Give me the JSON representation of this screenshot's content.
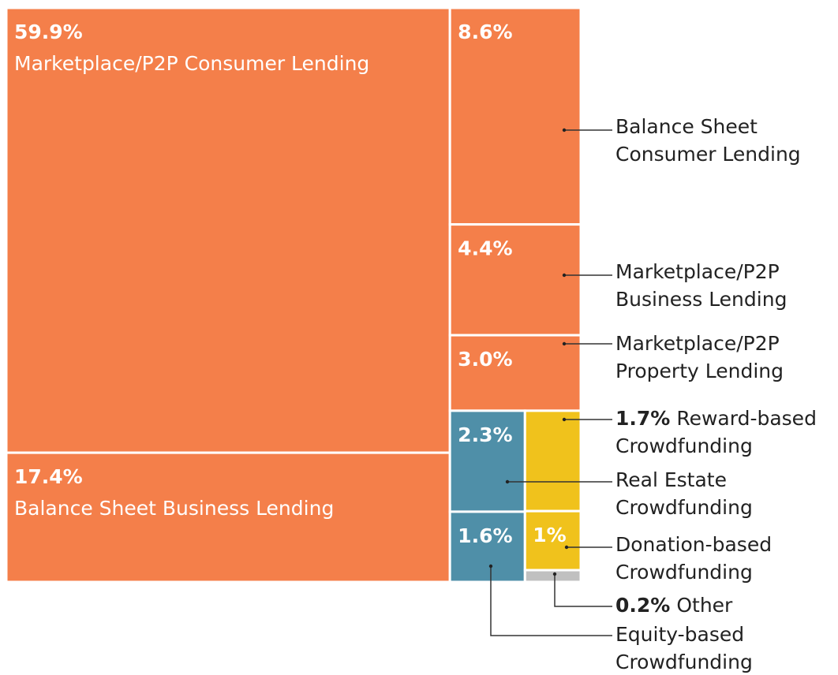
{
  "chart_data": {
    "type": "treemap",
    "categories": [
      "Marketplace/P2P Consumer Lending",
      "Balance Sheet Business Lending",
      "Balance Sheet Consumer Lending",
      "Marketplace/P2P Business Lending",
      "Marketplace/P2P Property Lending",
      "Real Estate Crowdfunding",
      "Equity-based Crowdfunding",
      "Reward-based Crowdfunding",
      "Donation-based Crowdfunding",
      "Other"
    ],
    "values": [
      59.9,
      17.4,
      8.6,
      4.4,
      3.0,
      2.3,
      1.6,
      1.7,
      1,
      0.2
    ],
    "value_labels": [
      "59.9%",
      "17.4%",
      "8.6%",
      "4.4%",
      "3.0%",
      "2.3%",
      "1.6%",
      "1.7%",
      "1%",
      "0.2%"
    ],
    "colors": [
      "#f47f4a",
      "#f47f4a",
      "#f47f4a",
      "#f47f4a",
      "#f47f4a",
      "#4f8fa8",
      "#4f8fa8",
      "#f0c21c",
      "#f0c21c",
      "#c0c0c0"
    ]
  }
}
